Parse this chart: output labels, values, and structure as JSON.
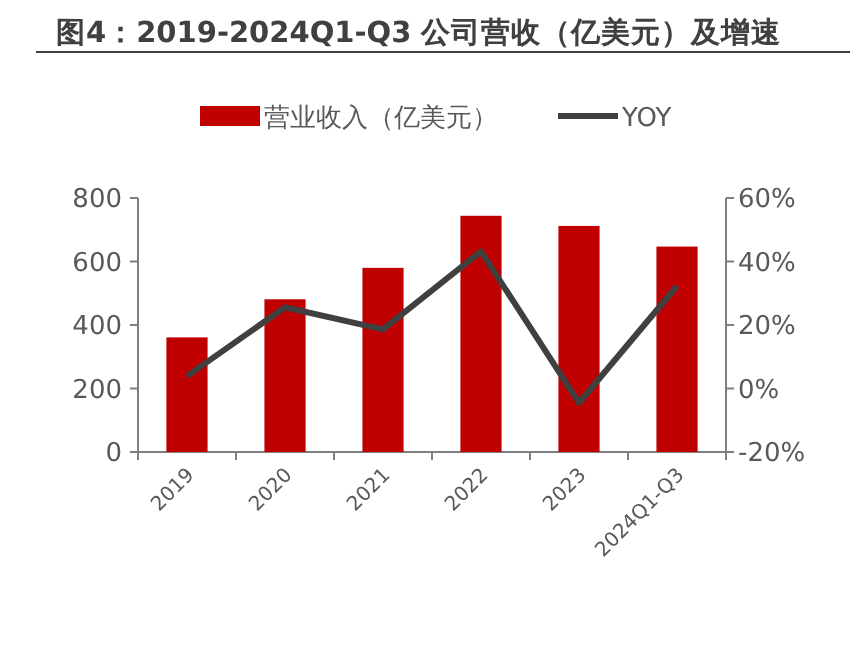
{
  "chart_data": {
    "type": "bar",
    "title": "图4：2019-2024Q1-Q3 公司营收（亿美元）及增速",
    "categories": [
      "2019",
      "2020",
      "2021",
      "2022",
      "2023",
      "2024Q1-Q3"
    ],
    "series": [
      {
        "name": "营业收入（亿美元）",
        "color": "#c00000",
        "values": [
          361,
          481,
          580,
          744,
          712,
          647
        ]
      },
      {
        "name": "YOY",
        "type": "line",
        "axis": "y2",
        "color": "#404040",
        "values": [
          3.9,
          25.6,
          18.6,
          43.2,
          -4.5,
          32.3
        ]
      }
    ],
    "ylim": [
      0,
      800
    ],
    "yticks": [
      0,
      200,
      400,
      600,
      800
    ],
    "y2lim": [
      -20,
      60
    ],
    "y2ticks": [
      {
        "value": -20,
        "label": "-20%"
      },
      {
        "value": 0,
        "label": "0%"
      },
      {
        "value": 20,
        "label": "20%"
      },
      {
        "value": 40,
        "label": "40%"
      },
      {
        "value": 60,
        "label": "60%"
      }
    ],
    "legend": "top",
    "grid": false
  }
}
